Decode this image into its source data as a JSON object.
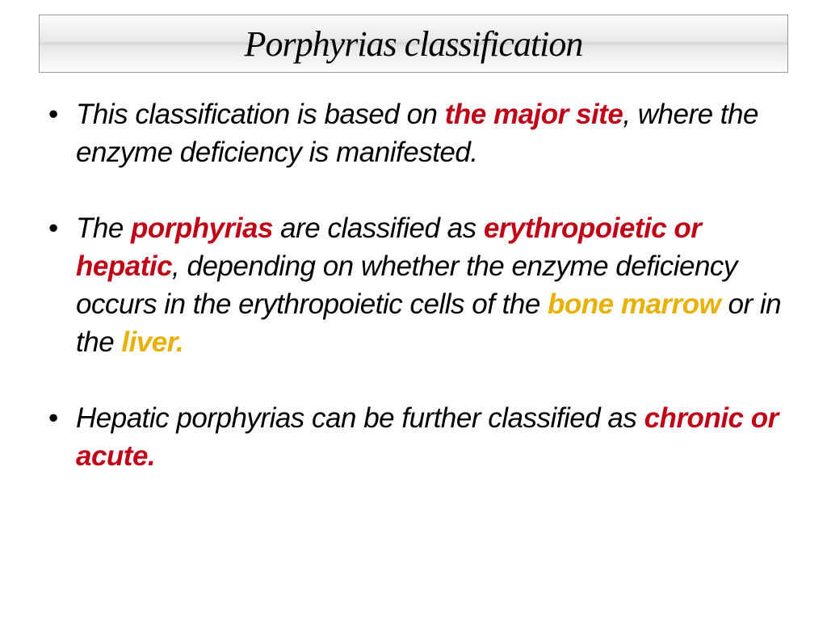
{
  "title": "Porphyrias classification",
  "colors": {
    "red_emphasis": "#c00418",
    "yellow_emphasis": "#e8b000",
    "text": "#000000",
    "title_bg_top": "#fdfdfd",
    "title_bg_mid": "#d4d4d4",
    "title_border": "#999999",
    "background": "#ffffff"
  },
  "typography": {
    "title_font": "Georgia, serif",
    "title_fontsize": 44,
    "title_style": "italic",
    "body_font": "Verdana, sans-serif",
    "body_fontsize": 35,
    "body_style": "italic"
  },
  "bullets": [
    {
      "segments": [
        {
          "text": "This classification is based on ",
          "style": "normal"
        },
        {
          "text": "the major site",
          "style": "red"
        },
        {
          "text": ", where the enzyme deficiency is manifested.",
          "style": "normal"
        }
      ]
    },
    {
      "segments": [
        {
          "text": "The ",
          "style": "normal"
        },
        {
          "text": "porphyrias ",
          "style": "red"
        },
        {
          "text": "are classified as ",
          "style": "normal"
        },
        {
          "text": "erythropoietic or hepatic",
          "style": "red"
        },
        {
          "text": ", depending on  whether the enzyme deficiency occurs in the  erythropoietic cells of the ",
          "style": "normal"
        },
        {
          "text": "bone marrow ",
          "style": "yellow"
        },
        {
          "text": "or  in the ",
          "style": "normal"
        },
        {
          "text": "liver.",
          "style": "yellow"
        }
      ]
    },
    {
      "segments": [
        {
          "text": "Hepatic porphyrias can be further classified  as ",
          "style": "normal"
        },
        {
          "text": "chronic or acute.",
          "style": "red"
        }
      ]
    }
  ]
}
